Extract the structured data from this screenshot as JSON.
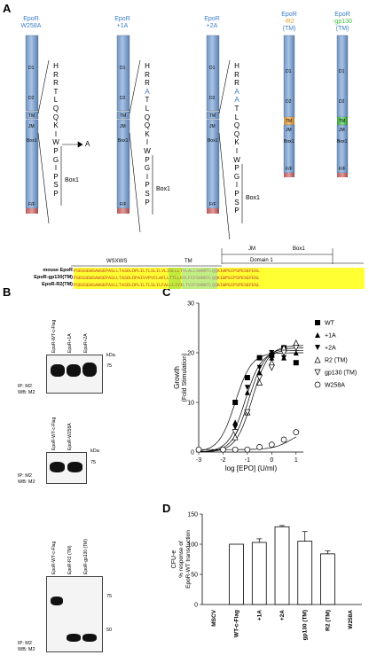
{
  "panels": {
    "A": "A",
    "B": "B",
    "C": "C",
    "D": "D"
  },
  "panelA": {
    "constructs": [
      {
        "top": "EpoR",
        "bottom": "W258A",
        "color": "#3a7cc8",
        "bottom_color": "#3a7cc8"
      },
      {
        "top": "EpoR",
        "bottom": "+1A",
        "color": "#3a7cc8",
        "bottom_color": "#3a7cc8"
      },
      {
        "top": "EpoR",
        "bottom": "+2A",
        "color": "#3a7cc8",
        "bottom_color": "#3a7cc8"
      },
      {
        "top": "EpoR",
        "bottom": "-R2",
        "sub": "(TM)",
        "color": "#3a7cc8",
        "bottom_color": "#e59a1c"
      },
      {
        "top": "EpoR",
        "bottom": "-gp130",
        "sub": "(TM)",
        "color": "#3a7cc8",
        "bottom_color": "#3fbf3f"
      }
    ],
    "domain_labels": {
      "d1": "D1",
      "d2": "D2",
      "tm": "TM",
      "jm": "JM",
      "box1": "Box1",
      "fr": "F/F"
    },
    "seq1": [
      "H",
      "R",
      "R",
      "T",
      "L",
      "Q",
      "Q",
      "K",
      "I",
      "W",
      "P",
      "G",
      "I",
      "P",
      "S",
      "P"
    ],
    "seq2": [
      "H",
      "R",
      "R",
      "A",
      "T",
      "L",
      "Q",
      "Q",
      "K",
      "I",
      "W",
      "P",
      "G",
      "I",
      "P",
      "S",
      "P"
    ],
    "seq3": [
      "H",
      "R",
      "R",
      "A",
      "A",
      "T",
      "L",
      "Q",
      "Q",
      "K",
      "I",
      "W",
      "P",
      "G",
      "I",
      "P",
      "S",
      "P"
    ],
    "mutation_label": "A",
    "box1": "Box1",
    "alignment": {
      "headers": {
        "wsxws": "WSXWS",
        "tm": "TM",
        "jm": "JM",
        "box1": "Box1",
        "domain1": "Domain 1"
      },
      "rows": [
        {
          "label": "mouse EpoR",
          "seq": "PSEGSEWSAWSEPASLLTASDLDPLILTLSLILVLISLLLTVLALLSHRRTLQQKIWPGIPSPESEFEGL"
        },
        {
          "label": "EpoR-gp130(TM)",
          "seq": "PSEGSEWSAWSEPASLLTASDLDPAIVVPVCLAFLLTTLLGVLFCFSHRRTLQQKIWPGIPSPESEFEGL"
        },
        {
          "label": "EpoR-R2(TM)",
          "seq": "PSEGSEWSAWSEPASLLTASDLDPLILTLSLILFALLLIVILTVIFSHRRTLQQKIWPGIPSPESEFEGL"
        }
      ]
    }
  },
  "panelB": {
    "blots": [
      {
        "lanes": [
          "EpoR-WT-c-Flag",
          "EpoR+1A",
          "EpoR+2A"
        ],
        "markers": [
          {
            "label": "kDa",
            "y": 0
          },
          {
            "label": "75",
            "y": 1
          }
        ],
        "ip": "IP: M2",
        "wb": "WB: M2"
      },
      {
        "lanes": [
          "EpoR-WT-c-Flag",
          "EpoR-W258A"
        ],
        "markers": [
          {
            "label": "kDa",
            "y": 0
          },
          {
            "label": "75",
            "y": 1
          }
        ],
        "ip": "IP: M2",
        "wb": "WB: M2"
      },
      {
        "lanes": [
          "EpoR-WT-c-Flag",
          "EpoR-R2 (TM)",
          "EpoR-gp130 (TM)"
        ],
        "markers": [
          {
            "label": "75",
            "y": 0
          },
          {
            "label": "50",
            "y": 1
          }
        ],
        "ip": "IP: M2",
        "wb": "WB: M2"
      }
    ]
  },
  "chart_data": [
    {
      "type": "scatter",
      "xlabel": "log [EPO] (U/ml)",
      "ylabel": "Growth",
      "ylabel2": "(Fold Stimulation)",
      "xlim": [
        -3,
        1.3
      ],
      "ylim": [
        0,
        30
      ],
      "xticks": [
        "-3",
        "-2",
        "-1",
        "0",
        "1"
      ],
      "yticks": [
        "0",
        "10",
        "20",
        "30"
      ],
      "series": [
        {
          "name": "WT",
          "marker": "square",
          "x": [
            -1.5,
            -1,
            -0.5,
            0,
            0.5,
            1
          ],
          "y": [
            10,
            15,
            19,
            19.5,
            21,
            18
          ]
        },
        {
          "name": "+1A",
          "marker": "triangle",
          "x": [
            -1.5,
            -1,
            -0.5,
            0,
            0.5,
            1
          ],
          "y": [
            6,
            12,
            16,
            19,
            19,
            20
          ]
        },
        {
          "name": "+2A",
          "marker": "triangle-down",
          "x": [
            -1.5,
            -1,
            -0.5,
            0,
            0.5,
            1
          ],
          "y": [
            5,
            13,
            17,
            20,
            19,
            21
          ]
        },
        {
          "name": "R2 (TM)",
          "marker": "triangle-open",
          "x": [
            -1.5,
            -1,
            -0.5,
            0,
            0.5,
            1
          ],
          "y": [
            3,
            8,
            14,
            18,
            21,
            22
          ]
        },
        {
          "name": "gp130 (TM)",
          "marker": "triangle-down-open",
          "x": [
            -1.5,
            -1,
            -0.5,
            0,
            0.5,
            1
          ],
          "y": [
            4,
            8,
            15,
            17,
            20,
            21
          ]
        },
        {
          "name": "W258A",
          "marker": "circle-open",
          "x": [
            -3,
            -2,
            -1.5,
            -1,
            -0.5,
            0,
            0.5,
            1
          ],
          "y": [
            0.5,
            0.5,
            0.5,
            0.5,
            1,
            1.5,
            2.5,
            4
          ]
        }
      ]
    },
    {
      "type": "bar",
      "ylabel": "CFU-e",
      "ylabel2": "% response of",
      "ylabel3": "EpoR-WT transduction",
      "categories": [
        "MSCV",
        "WT-c-Flag",
        "+1A",
        "+2A",
        "gp130 (TM)",
        "R2 (TM)",
        "W258A"
      ],
      "values": [
        0,
        100,
        103,
        129,
        105,
        84,
        0
      ],
      "errors": [
        0,
        0,
        6,
        2,
        16,
        5,
        0
      ],
      "ylim": [
        0,
        150
      ],
      "yticks": [
        "0",
        "50",
        "100",
        "150"
      ]
    }
  ]
}
